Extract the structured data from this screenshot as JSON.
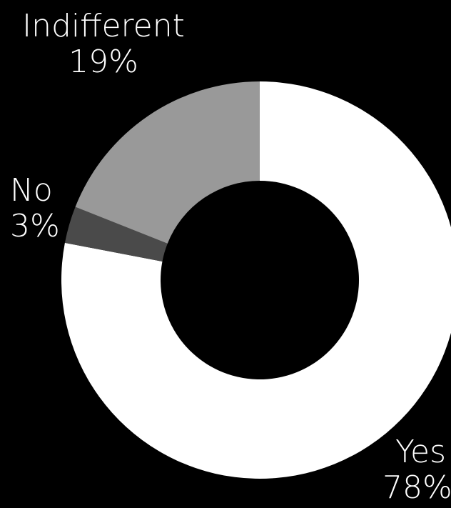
{
  "chart_data": {
    "type": "donut",
    "title": "",
    "series": [
      {
        "name": "Yes",
        "value": 78,
        "label": "78%",
        "color": "#FFFFFF"
      },
      {
        "name": "No",
        "value": 3,
        "label": "3%",
        "color": "#4A4A4A"
      },
      {
        "name": "Indifferent",
        "value": 19,
        "label": "19%",
        "color": "#999999"
      }
    ],
    "background": "#000000",
    "legend": "none"
  }
}
